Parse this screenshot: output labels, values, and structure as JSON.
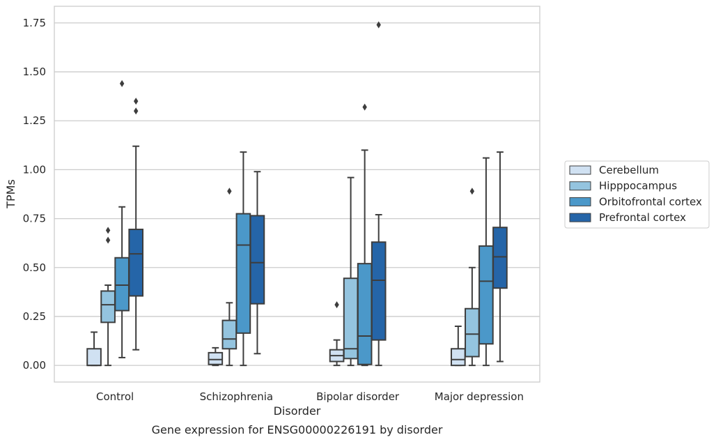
{
  "chart_data": {
    "type": "box",
    "title": "",
    "caption": "Gene expression for ENSG00000226191 by disorder",
    "xlabel": "Disorder",
    "ylabel": "TPMs",
    "ylim": [
      -0.085,
      1.835
    ],
    "yticks": [
      0.0,
      0.25,
      0.5,
      0.75,
      1.0,
      1.25,
      1.5,
      1.75
    ],
    "ytick_labels": [
      "0.00",
      "0.25",
      "0.50",
      "0.75",
      "1.00",
      "1.25",
      "1.50",
      "1.75"
    ],
    "grid": "horizontal",
    "legend_position": "right",
    "categories": [
      "Control",
      "Schizophrenia",
      "Bipolar disorder",
      "Major depression"
    ],
    "colors": {
      "Cerebellum": "#d0e1f2",
      "Hipppocampus": "#94c4df",
      "Orbitofrontal cortex": "#4b98c9",
      "Prefrontal cortex": "#2565a8",
      "edge": "#3d3d3d",
      "grid": "#cccccc",
      "frame": "#cccccc"
    },
    "series": [
      {
        "name": "Cerebellum",
        "boxes": [
          {
            "q1": 0.0,
            "median": 0.0,
            "q3": 0.085,
            "whislo": 0.0,
            "whishi": 0.17,
            "fliers": []
          },
          {
            "q1": 0.005,
            "median": 0.03,
            "q3": 0.065,
            "whislo": 0.0,
            "whishi": 0.09,
            "fliers": []
          },
          {
            "q1": 0.02,
            "median": 0.05,
            "q3": 0.08,
            "whislo": 0.0,
            "whishi": 0.13,
            "fliers": [
              0.31
            ]
          },
          {
            "q1": 0.0,
            "median": 0.03,
            "q3": 0.085,
            "whislo": 0.0,
            "whishi": 0.2,
            "fliers": []
          }
        ]
      },
      {
        "name": "Hipppocampus",
        "boxes": [
          {
            "q1": 0.22,
            "median": 0.31,
            "q3": 0.38,
            "whislo": 0.0,
            "whishi": 0.41,
            "fliers": [
              0.64,
              0.69
            ]
          },
          {
            "q1": 0.085,
            "median": 0.135,
            "q3": 0.23,
            "whislo": 0.0,
            "whishi": 0.32,
            "fliers": [
              0.89
            ]
          },
          {
            "q1": 0.035,
            "median": 0.085,
            "q3": 0.445,
            "whislo": 0.0,
            "whishi": 0.96,
            "fliers": []
          },
          {
            "q1": 0.045,
            "median": 0.16,
            "q3": 0.29,
            "whislo": 0.0,
            "whishi": 0.5,
            "fliers": [
              0.89
            ]
          }
        ]
      },
      {
        "name": "Orbitofrontal cortex",
        "boxes": [
          {
            "q1": 0.28,
            "median": 0.41,
            "q3": 0.55,
            "whislo": 0.04,
            "whishi": 0.81,
            "fliers": [
              1.44
            ]
          },
          {
            "q1": 0.165,
            "median": 0.615,
            "q3": 0.775,
            "whislo": 0.0,
            "whishi": 1.09,
            "fliers": []
          },
          {
            "q1": 0.005,
            "median": 0.15,
            "q3": 0.52,
            "whislo": 0.0,
            "whishi": 1.1,
            "fliers": [
              1.32
            ]
          },
          {
            "q1": 0.11,
            "median": 0.43,
            "q3": 0.61,
            "whislo": 0.0,
            "whishi": 1.06,
            "fliers": []
          }
        ]
      },
      {
        "name": "Prefrontal cortex",
        "boxes": [
          {
            "q1": 0.355,
            "median": 0.57,
            "q3": 0.695,
            "whislo": 0.08,
            "whishi": 1.12,
            "fliers": [
              1.3,
              1.35
            ]
          },
          {
            "q1": 0.315,
            "median": 0.525,
            "q3": 0.765,
            "whislo": 0.06,
            "whishi": 0.99,
            "fliers": []
          },
          {
            "q1": 0.13,
            "median": 0.435,
            "q3": 0.63,
            "whislo": 0.0,
            "whishi": 0.77,
            "fliers": [
              1.74
            ]
          },
          {
            "q1": 0.395,
            "median": 0.555,
            "q3": 0.705,
            "whislo": 0.02,
            "whishi": 1.09,
            "fliers": []
          }
        ]
      }
    ]
  }
}
